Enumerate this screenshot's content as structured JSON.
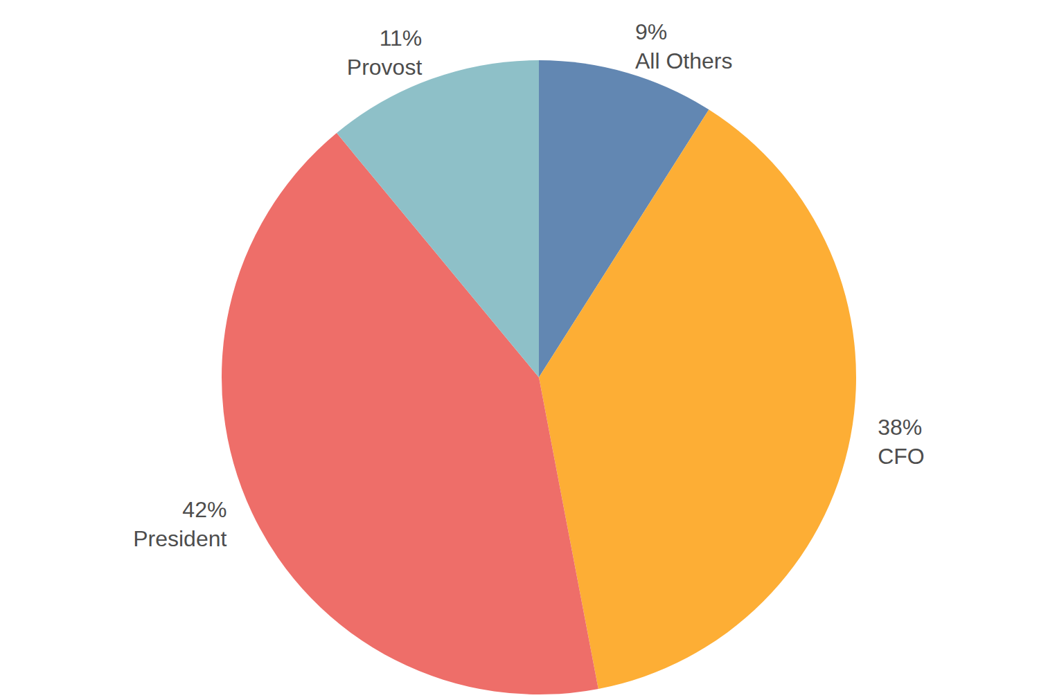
{
  "chart_data": {
    "type": "pie",
    "categories": [
      "All Others",
      "CFO",
      "President",
      "Provost"
    ],
    "values": [
      9,
      38,
      42,
      11
    ],
    "value_labels": [
      "9%",
      "38%",
      "42%",
      "11%"
    ],
    "colors": [
      "#6287b2",
      "#fdae35",
      "#ee6e69",
      "#8ec0c8"
    ],
    "data_labels": true
  }
}
